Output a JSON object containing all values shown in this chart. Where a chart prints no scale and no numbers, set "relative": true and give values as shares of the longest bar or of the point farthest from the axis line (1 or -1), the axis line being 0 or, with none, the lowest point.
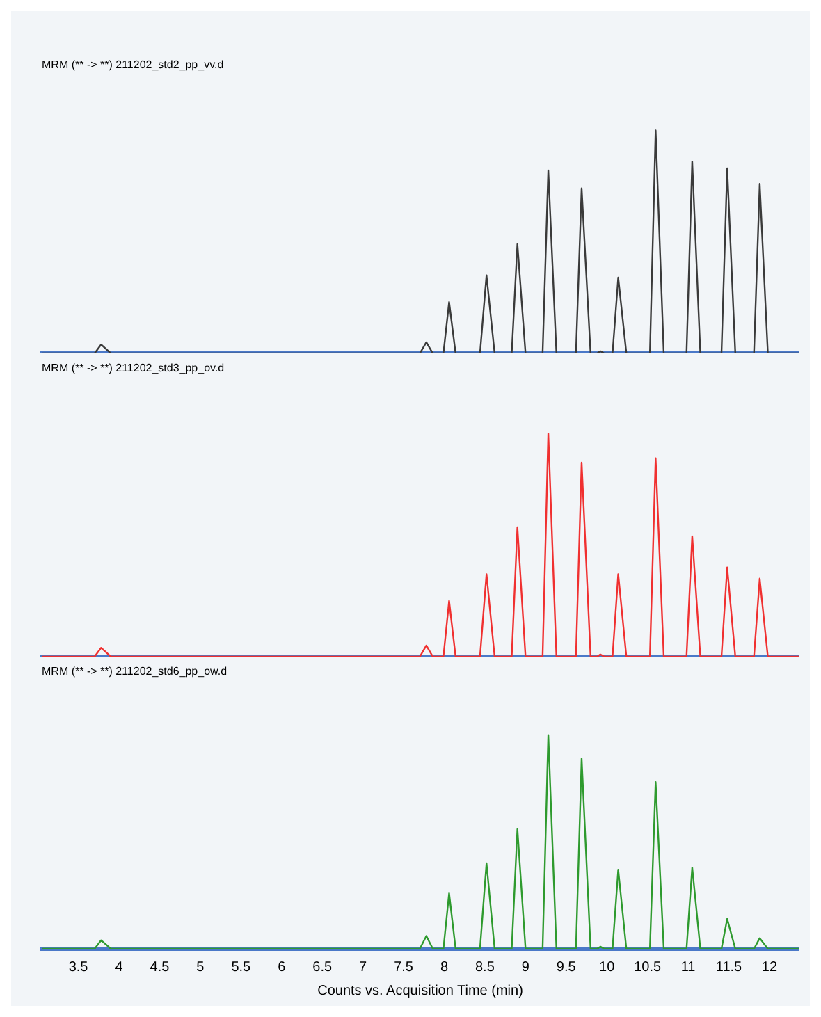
{
  "chart_data": [
    {
      "type": "line",
      "title": "MRM (** -> **) 211202_std2_pp_vv.d",
      "relative": true,
      "tick_labels": false,
      "xlim": [
        3.05,
        12.36
      ],
      "xticks": [
        3.5,
        4,
        4.5,
        5,
        5.5,
        6,
        6.5,
        7,
        7.5,
        8,
        8.5,
        9,
        9.5,
        10,
        10.5,
        11,
        11.5,
        12
      ],
      "grid": false,
      "legend": false,
      "marker": "none",
      "line_style": "solid",
      "x": [
        3.05,
        3.7,
        3.78,
        3.9,
        7.7,
        7.78,
        7.86,
        7.99,
        8.06,
        8.14,
        8.44,
        8.52,
        8.62,
        8.83,
        8.9,
        9.0,
        9.21,
        9.28,
        9.38,
        9.62,
        9.69,
        9.8,
        9.88,
        9.92,
        9.97,
        10.07,
        10.14,
        10.24,
        10.53,
        10.6,
        10.7,
        10.98,
        11.05,
        11.15,
        11.41,
        11.48,
        11.58,
        11.81,
        11.88,
        11.98,
        12.36
      ],
      "series": [
        {
          "color": "#3a3a3a",
          "values": [
            0,
            0,
            0.04,
            0,
            0,
            0.05,
            0,
            0,
            0.23,
            0,
            0,
            0.35,
            0,
            0,
            0.49,
            0,
            0,
            0.82,
            0,
            0,
            0.74,
            0,
            0,
            0.01,
            0,
            0,
            0.34,
            0,
            0,
            1,
            0,
            0,
            0.86,
            0,
            0,
            0.83,
            0,
            0,
            0.76,
            0,
            0
          ]
        }
      ]
    },
    {
      "type": "line",
      "title": "MRM (** -> **) 211202_std3_pp_ov.d",
      "relative": true,
      "tick_labels": false,
      "xlim": [
        3.05,
        12.36
      ],
      "xticks": [
        3.5,
        4,
        4.5,
        5,
        5.5,
        6,
        6.5,
        7,
        7.5,
        8,
        8.5,
        9,
        9.5,
        10,
        10.5,
        11,
        11.5,
        12
      ],
      "grid": false,
      "legend": false,
      "marker": "none",
      "line_style": "solid",
      "x": [
        3.05,
        3.7,
        3.78,
        3.9,
        7.7,
        7.78,
        7.86,
        7.99,
        8.06,
        8.14,
        8.44,
        8.52,
        8.62,
        8.83,
        8.9,
        9.0,
        9.21,
        9.28,
        9.38,
        9.62,
        9.69,
        9.8,
        9.88,
        9.92,
        9.97,
        10.07,
        10.14,
        10.24,
        10.53,
        10.6,
        10.7,
        10.98,
        11.05,
        11.15,
        11.41,
        11.48,
        11.58,
        11.81,
        11.88,
        11.98,
        12.36
      ],
      "series": [
        {
          "color": "#f03030",
          "values": [
            0,
            0,
            0.04,
            0,
            0,
            0.05,
            0,
            0,
            0.25,
            0,
            0,
            0.37,
            0,
            0,
            0.58,
            0,
            0,
            1,
            0,
            0,
            0.87,
            0,
            0,
            0.01,
            0,
            0,
            0.37,
            0,
            0,
            0.89,
            0,
            0,
            0.54,
            0,
            0,
            0.4,
            0,
            0,
            0.35,
            0,
            0
          ]
        }
      ]
    },
    {
      "type": "line",
      "title": "MRM (** -> **) 211202_std6_pp_ow.d",
      "xlabel": "Counts vs. Acquisition Time (min)",
      "relative": true,
      "tick_labels": "x",
      "xlim": [
        3.05,
        12.36
      ],
      "xticks": [
        3.5,
        4,
        4.5,
        5,
        5.5,
        6,
        6.5,
        7,
        7.5,
        8,
        8.5,
        9,
        9.5,
        10,
        10.5,
        11,
        11.5,
        12
      ],
      "grid": false,
      "legend": false,
      "marker": "none",
      "line_style": "solid",
      "x": [
        3.05,
        3.7,
        3.78,
        3.9,
        7.7,
        7.78,
        7.86,
        7.99,
        8.06,
        8.14,
        8.44,
        8.52,
        8.62,
        8.83,
        8.9,
        9.0,
        9.21,
        9.28,
        9.38,
        9.62,
        9.69,
        9.8,
        9.88,
        9.92,
        9.97,
        10.07,
        10.14,
        10.24,
        10.53,
        10.6,
        10.7,
        10.98,
        11.05,
        11.15,
        11.41,
        11.48,
        11.58,
        11.81,
        11.88,
        11.98,
        12.36
      ],
      "series": [
        {
          "color": "#2e9a2e",
          "values": [
            0,
            0,
            0.04,
            0,
            0,
            0.06,
            0,
            0,
            0.26,
            0,
            0,
            0.4,
            0,
            0,
            0.56,
            0,
            0,
            1,
            0,
            0,
            0.89,
            0,
            0,
            0.01,
            0,
            0,
            0.37,
            0,
            0,
            0.78,
            0,
            0,
            0.38,
            0,
            0,
            0.14,
            0,
            0,
            0.05,
            0,
            0
          ]
        }
      ]
    }
  ]
}
